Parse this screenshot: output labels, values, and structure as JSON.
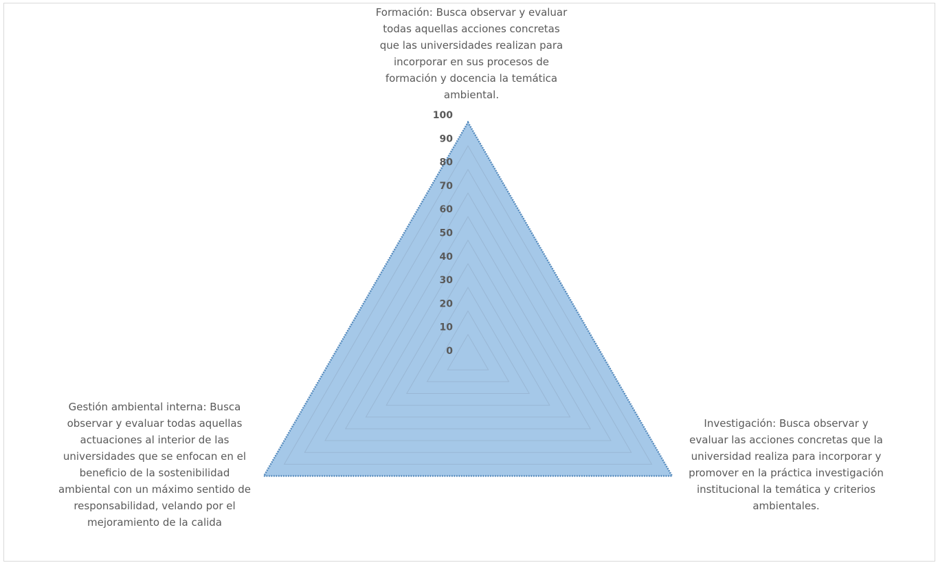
{
  "chart_data": {
    "type": "radar",
    "categories": [
      "Formación: Busca observar y evaluar todas aquellas acciones concretas que las universidades realizan para incorporar en sus procesos de formación y docencia la temática ambiental.",
      "Investigación: Busca observar y evaluar las acciones concretas que la universidad realiza para incorporar y promover en la práctica investigación institucional la temática y criterios ambientales.",
      "Gestión ambiental interna: Busca observar y evaluar todas aquellas actuaciones al interior de las universidades que se enfocan en el beneficio de la sostenibilidad ambiental con un máximo sentido de responsabilidad, velando por el mejoramiento de la calida"
    ],
    "series": [
      {
        "values": [
          100,
          100,
          100
        ],
        "color": "#9dc3e6",
        "border_color": "#2e75b6",
        "border_style": "dotted"
      }
    ],
    "rlim": [
      0,
      100
    ],
    "ticks": [
      "0",
      "10",
      "20",
      "30",
      "40",
      "50",
      "60",
      "70",
      "80",
      "90",
      "100"
    ],
    "grid": true,
    "legend": "none"
  },
  "labels": {
    "top": "Formación: Busca observar y evaluar\ntodas aquellas acciones concretas\nque las universidades realizan para\nincorporar en sus procesos de\nformación y docencia la temática\nambiental.",
    "right": "Investigación: Busca observar y\nevaluar las acciones concretas que la\nuniversidad realiza para incorporar y\npromover en la práctica investigación\ninstitucional la temática y criterios\nambientales.",
    "left": "Gestión ambiental interna: Busca\nobservar y evaluar todas aquellas\nactuaciones al interior de las\nuniversidades que se enfocan en el\nbeneficio de la sostenibilidad\nambiental con un máximo sentido de\nresponsabilidad, velando por el\nmejoramiento de la calida"
  }
}
